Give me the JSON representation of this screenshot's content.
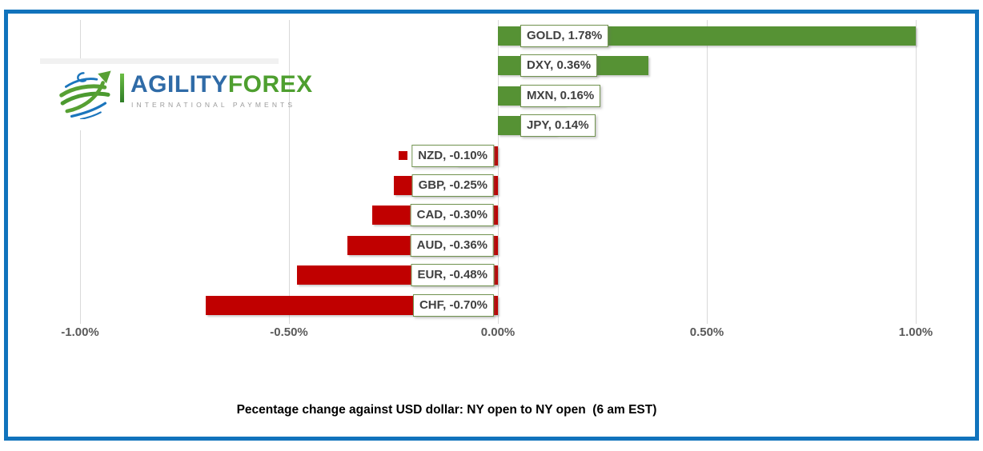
{
  "window": {
    "frame_color": "#1173BC",
    "background": "#FFFFFF"
  },
  "logo": {
    "brand_primary": "AGILITY",
    "brand_secondary": "FOREX",
    "tagline": "INTERNATIONAL PAYMENTS",
    "primary_color": "#2F6BA7",
    "secondary_color": "#4E9F2F",
    "tagline_color": "#9B9B9B",
    "globe_blue": "#1B75BC",
    "globe_green": "#57A033"
  },
  "chart_data": {
    "type": "bar",
    "orientation": "horizontal",
    "title": "Pecentage change against USD dollar: NY open to NY open  (6 am EST)",
    "categories": [
      "GOLD",
      "DXY",
      "MXN",
      "JPY",
      "NZD",
      "GBP",
      "CAD",
      "AUD",
      "EUR",
      "CHF"
    ],
    "values": [
      1.78,
      0.36,
      0.16,
      0.14,
      -0.1,
      -0.25,
      -0.3,
      -0.36,
      -0.48,
      -0.7
    ],
    "data_labels": [
      "GOLD, 1.78%",
      "DXY, 0.36%",
      "MXN, 0.16%",
      "JPY, 0.14%",
      "NZD, -0.10%",
      "GBP, -0.25%",
      "CAD, -0.30%",
      "AUD, -0.36%",
      "EUR, -0.48%",
      "CHF, -0.70%"
    ],
    "xlim": [
      -1.0,
      1.0
    ],
    "x_ticks": [
      {
        "value": -1.0,
        "label": "-1.00%"
      },
      {
        "value": -0.5,
        "label": "-0.50%"
      },
      {
        "value": 0.0,
        "label": "0.00%"
      },
      {
        "value": 0.5,
        "label": "0.50%"
      },
      {
        "value": 1.0,
        "label": "1.00%"
      }
    ],
    "grid": true,
    "legend": "none",
    "bars_clipped_at_axis_max": [
      "GOLD"
    ],
    "legend_key_visible_for": "NZD",
    "bar_colors": {
      "positive": "#569234",
      "negative": "#C00000"
    },
    "label_box": {
      "background": "#FFFFFF",
      "border_color": "#71934F",
      "text_color": "#404040"
    },
    "axis_label_color": "#595959",
    "gridline_color": "#D9D9D9"
  }
}
